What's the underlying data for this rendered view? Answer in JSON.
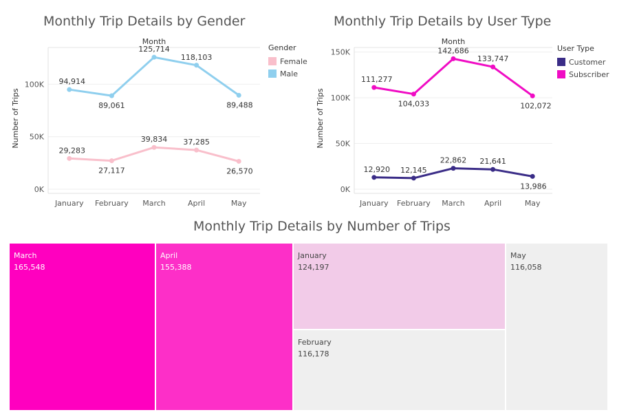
{
  "gender_chart": {
    "title": "Monthly Trip Details by Gender",
    "legend": {
      "title": "Gender",
      "items": [
        {
          "label": "Female",
          "color": "#f9bfcb"
        },
        {
          "label": "Male",
          "color": "#8fcfee"
        }
      ]
    }
  },
  "usertype_chart": {
    "title": "Monthly Trip Details by User Type",
    "legend": {
      "title": "User Type",
      "items": [
        {
          "label": "Customer",
          "color": "#3a2c87"
        },
        {
          "label": "Subscriber",
          "color": "#f00cc4"
        }
      ]
    }
  },
  "treemap": {
    "title": "Monthly Trip Details by Number of Trips"
  },
  "chart_data": [
    {
      "type": "line",
      "title": "Monthly Trip Details by Gender",
      "xlabel": "Month",
      "ylabel": "Number of Trips",
      "categories": [
        "January",
        "February",
        "March",
        "April",
        "May"
      ],
      "series": [
        {
          "name": "Female",
          "color": "#f9bfcb",
          "values": [
            29283,
            27117,
            39834,
            37285,
            26570
          ],
          "labels": [
            "29,283",
            "27,117",
            "39,834",
            "37,285",
            "26,570"
          ]
        },
        {
          "name": "Male",
          "color": "#8fcfee",
          "values": [
            94914,
            89061,
            125714,
            118103,
            89488
          ],
          "labels": [
            "94,914",
            "89,061",
            "125,714",
            "118,103",
            "89,488"
          ]
        }
      ],
      "yticks": [
        {
          "value": 0,
          "label": "0K"
        },
        {
          "value": 50000,
          "label": "50K"
        },
        {
          "value": 100000,
          "label": "100K"
        }
      ],
      "ylim": [
        0,
        135000
      ],
      "grid": true,
      "legend_position": "right"
    },
    {
      "type": "line",
      "title": "Monthly Trip Details by User Type",
      "xlabel": "Month",
      "ylabel": "Number of Trips",
      "categories": [
        "January",
        "February",
        "March",
        "April",
        "May"
      ],
      "series": [
        {
          "name": "Customer",
          "color": "#3a2c87",
          "values": [
            12920,
            12145,
            22862,
            21641,
            13986
          ],
          "labels": [
            "12,920",
            "12,145",
            "22,862",
            "21,641",
            "13,986"
          ]
        },
        {
          "name": "Subscriber",
          "color": "#f00cc4",
          "values": [
            111277,
            104033,
            142686,
            133747,
            102072
          ],
          "labels": [
            "111,277",
            "104,033",
            "142,686",
            "133,747",
            "102,072"
          ]
        }
      ],
      "yticks": [
        {
          "value": 0,
          "label": "0K"
        },
        {
          "value": 50000,
          "label": "50K"
        },
        {
          "value": 100000,
          "label": "100K"
        },
        {
          "value": 150000,
          "label": "150K"
        }
      ],
      "ylim": [
        0,
        155000
      ],
      "grid": true,
      "legend_position": "right"
    },
    {
      "type": "treemap",
      "title": "Monthly Trip Details by Number of Trips",
      "items": [
        {
          "label": "March",
          "value": 165548,
          "value_label": "165,548",
          "color": "#ff00bf",
          "text_color": "#ffffff"
        },
        {
          "label": "April",
          "value": 155388,
          "value_label": "155,388",
          "color": "#fd2fc8",
          "text_color": "#ffffff"
        },
        {
          "label": "January",
          "value": 124197,
          "value_label": "124,197",
          "color": "#f2cbe8",
          "text_color": "#444444"
        },
        {
          "label": "February",
          "value": 116178,
          "value_label": "116,178",
          "color": "#efefef",
          "text_color": "#444444"
        },
        {
          "label": "May",
          "value": 116058,
          "value_label": "116,058",
          "color": "#efefef",
          "text_color": "#444444"
        }
      ]
    }
  ]
}
